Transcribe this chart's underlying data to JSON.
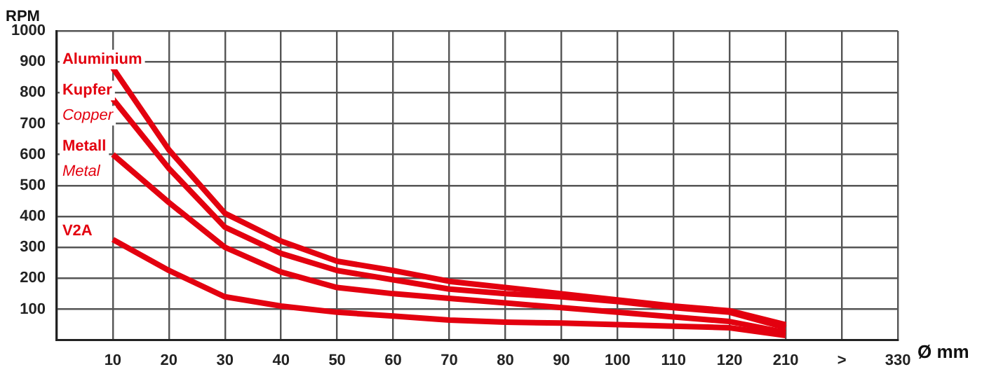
{
  "chart_data": {
    "type": "line",
    "xlabel": "Ø mm",
    "ylabel": "RPM",
    "categories": [
      null,
      "10",
      "20",
      "30",
      "40",
      "50",
      "60",
      "70",
      "80",
      "90",
      "100",
      "110",
      "120",
      "210",
      ">",
      "330"
    ],
    "ylim": [
      0,
      1000
    ],
    "yticks": [
      100,
      200,
      300,
      400,
      500,
      600,
      700,
      800,
      900,
      1000
    ],
    "grid": true,
    "legend": false,
    "marker": "none",
    "line_style": "solid",
    "series": [
      {
        "name": "Aluminium",
        "color": "#e3000f",
        "values": [
          null,
          880,
          615,
          410,
          320,
          255,
          225,
          190,
          170,
          150,
          130,
          110,
          95,
          50,
          null,
          null
        ]
      },
      {
        "name": "Kupfer\nCopper",
        "color": "#e3000f",
        "values": [
          null,
          780,
          555,
          365,
          280,
          225,
          195,
          165,
          150,
          140,
          125,
          105,
          90,
          40,
          null,
          null
        ]
      },
      {
        "name": "Metall\nMetal",
        "color": "#e3000f",
        "values": [
          null,
          600,
          445,
          300,
          220,
          170,
          150,
          135,
          120,
          105,
          90,
          75,
          60,
          25,
          null,
          null
        ]
      },
      {
        "name": "V2A",
        "color": "#e3000f",
        "values": [
          null,
          325,
          225,
          140,
          110,
          90,
          78,
          65,
          58,
          55,
          50,
          45,
          40,
          15,
          null,
          null
        ]
      }
    ]
  }
}
